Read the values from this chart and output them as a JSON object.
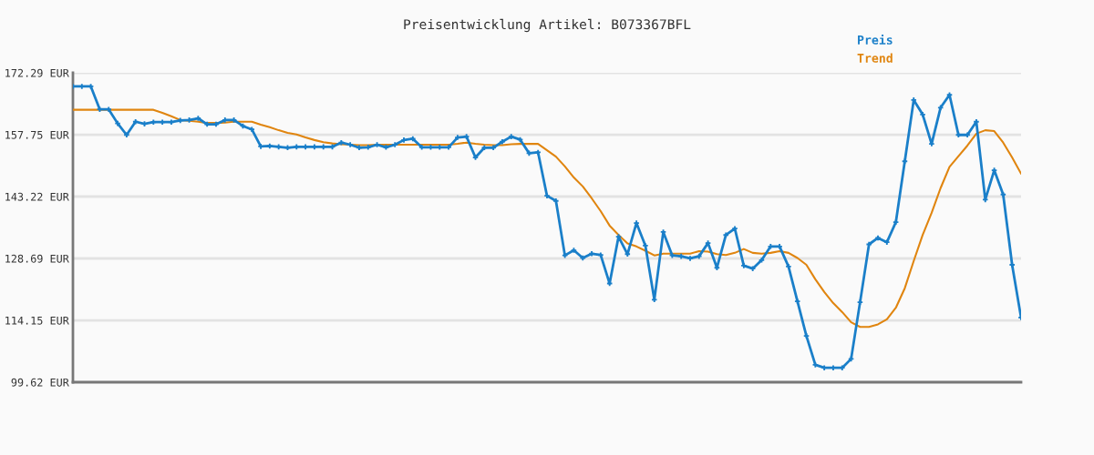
{
  "chart_data": {
    "type": "line",
    "title": "Preisentwicklung Artikel: B073367BFL",
    "categories": [
      null,
      null,
      null,
      null,
      null,
      null,
      null,
      null,
      null,
      null,
      null,
      null,
      null,
      null,
      null,
      null,
      null,
      null,
      null,
      null,
      null,
      null,
      null,
      null,
      null,
      null,
      null,
      null,
      null,
      null,
      null,
      null,
      null,
      null,
      null,
      null,
      null,
      null,
      null,
      null,
      null,
      null,
      null,
      null,
      null,
      null,
      null,
      null,
      null,
      null,
      null,
      null,
      null,
      null,
      null,
      null,
      null,
      null,
      null,
      null,
      null,
      null,
      null,
      null,
      null,
      null,
      null,
      null,
      null,
      null,
      null,
      null,
      null,
      null,
      null,
      null,
      null,
      null,
      null,
      null,
      null,
      null,
      null,
      null,
      null,
      null,
      null,
      null,
      null,
      null,
      null,
      null,
      null,
      null,
      null,
      null,
      null,
      null,
      null,
      null,
      null,
      null,
      null,
      null,
      null,
      null,
      null
    ],
    "series": [
      {
        "name": "Preis",
        "color": "#1a7fc9",
        "marker": "cross",
        "values": [
          169.1,
          169.1,
          169.1,
          163.7,
          163.7,
          160.4,
          157.7,
          160.8,
          160.3,
          160.7,
          160.7,
          160.7,
          161.1,
          161.2,
          161.6,
          160.2,
          160.2,
          161.2,
          161.2,
          159.8,
          159.0,
          155.0,
          155.1,
          154.9,
          154.7,
          154.9,
          154.9,
          154.9,
          154.9,
          154.9,
          155.9,
          155.4,
          154.7,
          154.8,
          155.4,
          154.8,
          155.4,
          156.5,
          156.8,
          154.8,
          154.8,
          154.8,
          154.8,
          157.1,
          157.3,
          152.4,
          154.7,
          154.7,
          156.1,
          157.3,
          156.6,
          153.4,
          153.6,
          143.4,
          142.2,
          129.4,
          130.6,
          128.8,
          129.8,
          129.5,
          122.8,
          133.8,
          129.7,
          137.0,
          131.7,
          119.0,
          134.9,
          129.4,
          129.2,
          128.7,
          129.2,
          132.3,
          126.5,
          134.2,
          135.7,
          127.0,
          126.3,
          128.3,
          131.5,
          131.5,
          126.8,
          118.6,
          110.5,
          103.7,
          103.0,
          103.0,
          103.0,
          105.1,
          118.4,
          132.0,
          133.5,
          132.5,
          137.2,
          151.5,
          165.9,
          162.5,
          155.6,
          164.1,
          167.1,
          157.7,
          157.7,
          160.8,
          142.5,
          149.4,
          143.7,
          127.2,
          114.8
        ]
      },
      {
        "name": "Trend",
        "color": "#e0850f",
        "marker": "none",
        "values": [
          163.6,
          163.6,
          163.6,
          163.6,
          163.6,
          163.6,
          163.6,
          163.6,
          163.6,
          163.6,
          162.9,
          162.1,
          161.2,
          161.0,
          160.8,
          160.5,
          160.5,
          160.6,
          160.8,
          160.8,
          160.8,
          160.1,
          159.5,
          158.8,
          158.2,
          157.8,
          157.1,
          156.5,
          156.0,
          155.7,
          155.5,
          155.4,
          155.3,
          155.3,
          155.4,
          155.4,
          155.4,
          155.4,
          155.4,
          155.4,
          155.4,
          155.4,
          155.4,
          155.6,
          155.9,
          155.6,
          155.4,
          155.3,
          155.3,
          155.5,
          155.6,
          155.6,
          155.6,
          154.1,
          152.6,
          150.3,
          147.7,
          145.6,
          142.8,
          139.8,
          136.4,
          134.2,
          132.2,
          131.5,
          130.5,
          129.4,
          129.8,
          129.8,
          129.8,
          129.8,
          130.4,
          130.3,
          129.7,
          129.5,
          130.0,
          130.9,
          130.0,
          129.8,
          130.0,
          130.4,
          130.0,
          128.8,
          127.2,
          123.8,
          120.8,
          118.2,
          116.1,
          113.7,
          112.6,
          112.6,
          113.2,
          114.4,
          117.1,
          121.7,
          128.1,
          134.2,
          139.4,
          145.2,
          150.2,
          152.7,
          155.2,
          158.0,
          158.8,
          158.6,
          155.9,
          152.4,
          148.6
        ]
      }
    ],
    "ylim": [
      99.62,
      172.29
    ],
    "yticks": [
      {
        "value": 99.62,
        "label": "99.62 EUR"
      },
      {
        "value": 114.15,
        "label": "114.15 EUR"
      },
      {
        "value": 128.69,
        "label": "128.69 EUR"
      },
      {
        "value": 143.22,
        "label": "143.22 EUR"
      },
      {
        "value": 157.75,
        "label": "157.75 EUR"
      },
      {
        "value": 172.29,
        "label": "172.29 EUR"
      }
    ],
    "grid": "y",
    "legend": "top right"
  }
}
